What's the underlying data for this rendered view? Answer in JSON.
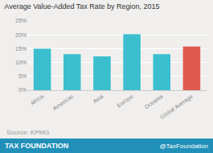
{
  "chart_data": {
    "type": "bar",
    "title": "Average Value-Added Tax Rate by Region, 2015",
    "categories": [
      "Africa",
      "Americas",
      "Asia",
      "Europe",
      "Oceania",
      "Global Average"
    ],
    "values": [
      15.0,
      13.0,
      12.2,
      20.2,
      13.0,
      15.8
    ],
    "colors": [
      "#3bbfcf",
      "#3bbfcf",
      "#3bbfcf",
      "#3bbfcf",
      "#3bbfcf",
      "#e05a4e"
    ],
    "ylim": [
      0,
      25
    ],
    "yticks": [
      {
        "value": 0,
        "label": "0%"
      },
      {
        "value": 5,
        "label": "5%"
      },
      {
        "value": 10,
        "label": "10%"
      },
      {
        "value": 15,
        "label": "15%"
      },
      {
        "value": 20,
        "label": "20%"
      },
      {
        "value": 25,
        "label": "25%"
      }
    ],
    "grid": true,
    "annotations": [
      "Source: KPMG",
      "TAX FOUNDATION",
      "@TaxFoundation"
    ]
  }
}
